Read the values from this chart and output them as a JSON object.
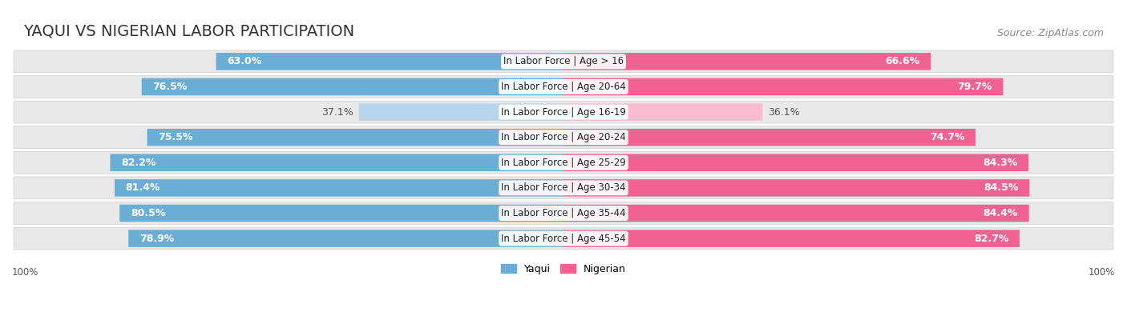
{
  "title": "YAQUI VS NIGERIAN LABOR PARTICIPATION",
  "source": "Source: ZipAtlas.com",
  "categories": [
    "In Labor Force | Age > 16",
    "In Labor Force | Age 20-64",
    "In Labor Force | Age 16-19",
    "In Labor Force | Age 20-24",
    "In Labor Force | Age 25-29",
    "In Labor Force | Age 30-34",
    "In Labor Force | Age 35-44",
    "In Labor Force | Age 45-54"
  ],
  "yaqui_values": [
    63.0,
    76.5,
    37.1,
    75.5,
    82.2,
    81.4,
    80.5,
    78.9
  ],
  "nigerian_values": [
    66.6,
    79.7,
    36.1,
    74.7,
    84.3,
    84.5,
    84.4,
    82.7
  ],
  "yaqui_color": "#6aaed6",
  "yaqui_color_light": "#b8d4ea",
  "nigerian_color": "#f06292",
  "nigerian_color_light": "#f8bbd0",
  "bg_color": "#ffffff",
  "row_bg": "#e8e8e8",
  "bar_bg_left": "#f0f0f0",
  "bar_bg_right": "#f0f0f0",
  "label_white": "#ffffff",
  "label_dark": "#555555",
  "max_value": 100.0,
  "title_fontsize": 14,
  "source_fontsize": 9,
  "label_fontsize": 9,
  "category_fontsize": 8.5,
  "legend_fontsize": 9,
  "axis_label_fontsize": 8.5
}
